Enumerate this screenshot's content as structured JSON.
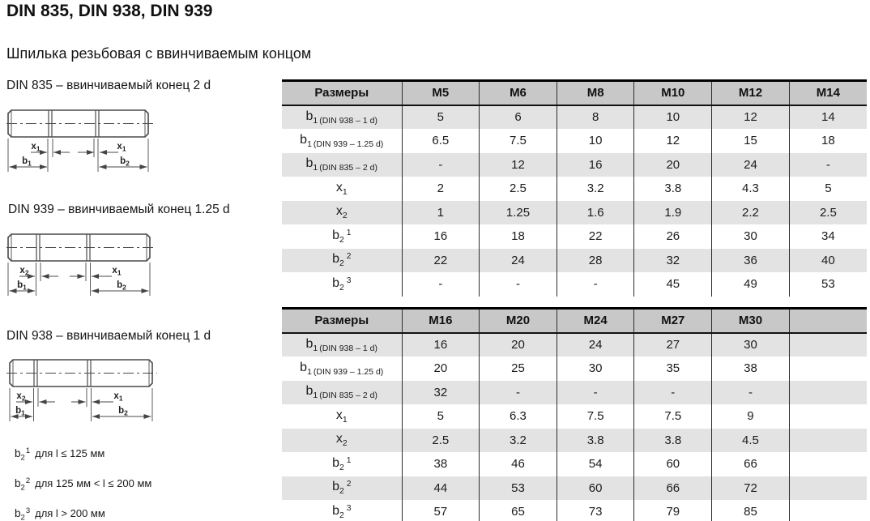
{
  "title": "DIN 835, DIN 938, DIN 939",
  "subtitle": "Шпилька резьбовая с ввинчиваемым концом",
  "colors": {
    "table_header_bg": "#c8c8c8",
    "row_stripe_bg": "#e3e3e3",
    "border_color": "#000000",
    "text_color": "#1a1a1a"
  },
  "drawings": [
    {
      "caption": "DIN 835 – ввинчиваемый конец 2 d",
      "dims": {
        "left_x": {
          "base": "x",
          "sub": "1"
        },
        "left_b": {
          "base": "b",
          "sub": "1"
        },
        "right_x": {
          "base": "x",
          "sub": "1"
        },
        "right_b": {
          "base": "b",
          "sub": "2"
        }
      }
    },
    {
      "caption": "DIN 939 – ввинчиваемый конец 1.25 d",
      "dims": {
        "left_x": {
          "base": "x",
          "sub": "2"
        },
        "left_b": {
          "base": "b",
          "sub": "1"
        },
        "right_x": {
          "base": "x",
          "sub": "1"
        },
        "right_b": {
          "base": "b",
          "sub": "2"
        }
      }
    },
    {
      "caption": "DIN 938 – ввинчиваемый конец 1 d",
      "dims": {
        "left_x": {
          "base": "x",
          "sub": "2"
        },
        "left_b": {
          "base": "b",
          "sub": "1"
        },
        "right_x": {
          "base": "x",
          "sub": "1"
        },
        "right_b": {
          "base": "b",
          "sub": "2"
        }
      }
    }
  ],
  "footnotes": [
    {
      "base": "b",
      "sub": "2",
      "sup": "1",
      "text": "для l ≤ 125 мм"
    },
    {
      "base": "b",
      "sub": "2",
      "sup": "2",
      "text": "для 125 мм < l ≤ 200 мм"
    },
    {
      "base": "b",
      "sub": "2",
      "sup": "3",
      "text": "для l > 200 мм"
    }
  ],
  "tables": [
    {
      "header": [
        "Размеры",
        "M5",
        "M6",
        "M8",
        "M10",
        "M12",
        "M14"
      ],
      "rows": [
        {
          "label": {
            "base": "b",
            "sub": "1",
            "note": "(DIN 938 – 1 d)"
          },
          "values": [
            "5",
            "6",
            "8",
            "10",
            "12",
            "14"
          ]
        },
        {
          "label": {
            "base": "b",
            "sub": "1",
            "note": "(DIN 939 – 1.25 d)"
          },
          "values": [
            "6.5",
            "7.5",
            "10",
            "12",
            "15",
            "18"
          ]
        },
        {
          "label": {
            "base": "b",
            "sub": "1",
            "note": "(DIN 835 – 2 d)"
          },
          "values": [
            "-",
            "12",
            "16",
            "20",
            "24",
            "-"
          ]
        },
        {
          "label": {
            "base": "x",
            "sub": "1"
          },
          "values": [
            "2",
            "2.5",
            "3.2",
            "3.8",
            "4.3",
            "5"
          ]
        },
        {
          "label": {
            "base": "x",
            "sub": "2"
          },
          "values": [
            "1",
            "1.25",
            "1.6",
            "1.9",
            "2.2",
            "2.5"
          ]
        },
        {
          "label": {
            "base": "b",
            "sub": "2",
            "sup": "1"
          },
          "values": [
            "16",
            "18",
            "22",
            "26",
            "30",
            "34"
          ]
        },
        {
          "label": {
            "base": "b",
            "sub": "2",
            "sup": "2"
          },
          "values": [
            "22",
            "24",
            "28",
            "32",
            "36",
            "40"
          ]
        },
        {
          "label": {
            "base": "b",
            "sub": "2",
            "sup": "3"
          },
          "values": [
            "-",
            "-",
            "-",
            "45",
            "49",
            "53"
          ]
        }
      ]
    },
    {
      "header": [
        "Размеры",
        "M16",
        "M20",
        "M24",
        "M27",
        "M30",
        ""
      ],
      "rows": [
        {
          "label": {
            "base": "b",
            "sub": "1",
            "note": "(DIN 938 – 1 d)"
          },
          "values": [
            "16",
            "20",
            "24",
            "27",
            "30",
            ""
          ]
        },
        {
          "label": {
            "base": "b",
            "sub": "1",
            "note": "(DIN 939 – 1.25 d)"
          },
          "values": [
            "20",
            "25",
            "30",
            "35",
            "38",
            ""
          ]
        },
        {
          "label": {
            "base": "b",
            "sub": "1",
            "note": "(DIN 835 – 2 d)"
          },
          "values": [
            "32",
            "-",
            "-",
            "-",
            "-",
            ""
          ]
        },
        {
          "label": {
            "base": "x",
            "sub": "1"
          },
          "values": [
            "5",
            "6.3",
            "7.5",
            "7.5",
            "9",
            ""
          ]
        },
        {
          "label": {
            "base": "x",
            "sub": "2"
          },
          "values": [
            "2.5",
            "3.2",
            "3.8",
            "3.8",
            "4.5",
            ""
          ]
        },
        {
          "label": {
            "base": "b",
            "sub": "2",
            "sup": "1"
          },
          "values": [
            "38",
            "46",
            "54",
            "60",
            "66",
            ""
          ]
        },
        {
          "label": {
            "base": "b",
            "sub": "2",
            "sup": "2"
          },
          "values": [
            "44",
            "53",
            "60",
            "66",
            "72",
            ""
          ]
        },
        {
          "label": {
            "base": "b",
            "sub": "2",
            "sup": "3"
          },
          "values": [
            "57",
            "65",
            "73",
            "79",
            "85",
            ""
          ]
        }
      ]
    }
  ]
}
